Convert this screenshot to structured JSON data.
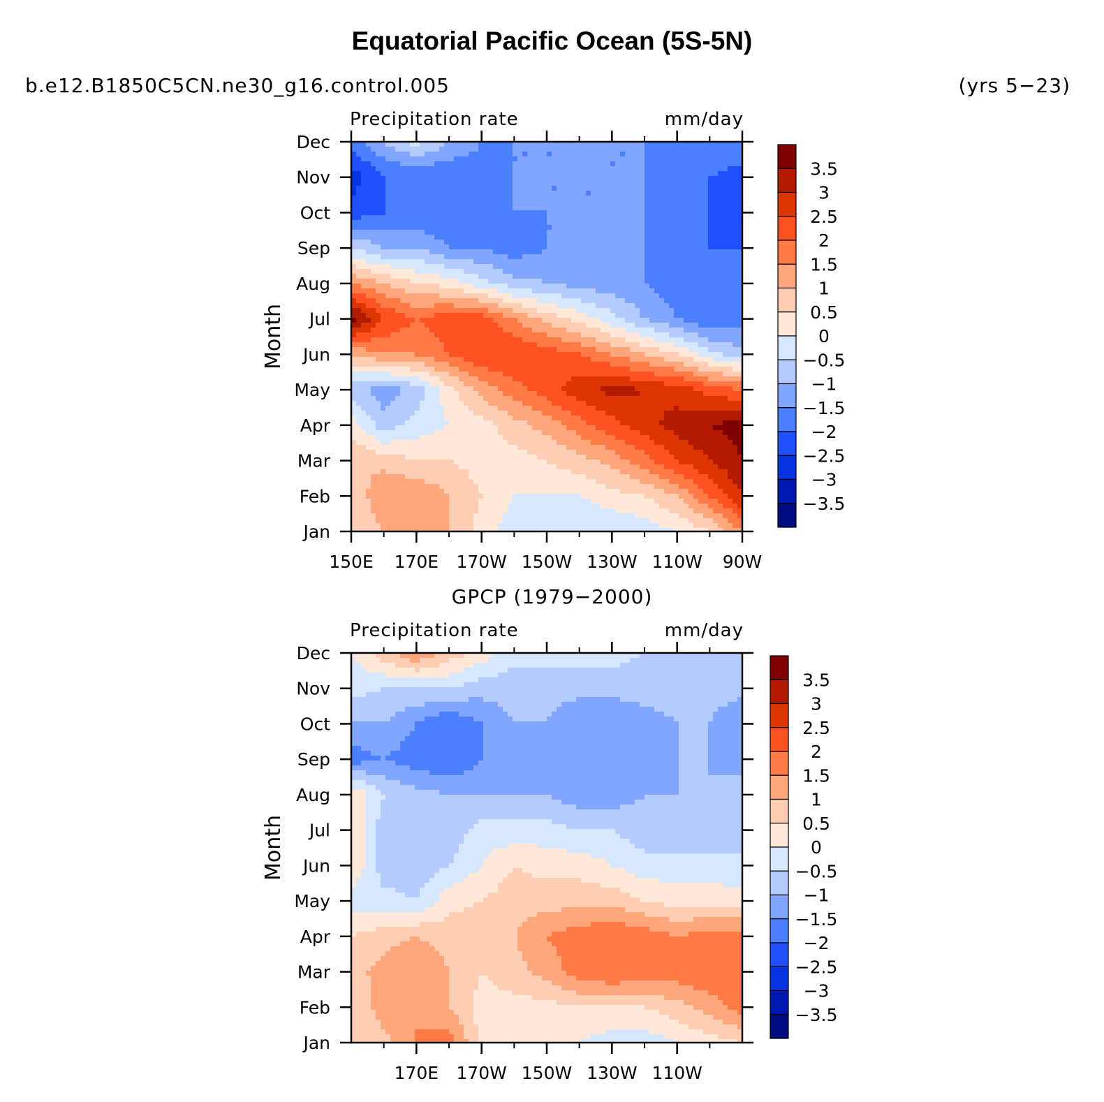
{
  "figure": {
    "title": "Equatorial Pacific Ocean (5S-5N)",
    "case_name": "b.e12.B1850C5CN.ne30_g16.control.005",
    "years": "(yrs 5−23)",
    "panel2_title": "GPCP (1979−2000)"
  },
  "colorbar": {
    "labels": [
      "3.5",
      "3",
      "2.5",
      "2",
      "1.5",
      "1",
      "0.5",
      "0",
      "−0.5",
      "−1",
      "−1.5",
      "−2",
      "−2.5",
      "−3",
      "−3.5"
    ],
    "colors": [
      "#7f0000",
      "#b31b00",
      "#dd3600",
      "#ff5222",
      "#ff7a45",
      "#ffa67a",
      "#ffcdb2",
      "#ffe8d8",
      "#d6e8ff",
      "#b3cbff",
      "#80a6ff",
      "#4a7fff",
      "#1f4fff",
      "#0634e0",
      "#0017b0",
      "#000c80"
    ]
  },
  "chart_data": [
    {
      "type": "heatmap",
      "subtitle_left": "Precipitation rate",
      "subtitle_right": "mm/day",
      "ylabel": "Month",
      "y_ticks": [
        "Jan",
        "Feb",
        "Mar",
        "Apr",
        "May",
        "Jun",
        "Jul",
        "Aug",
        "Sep",
        "Oct",
        "Nov",
        "Dec"
      ],
      "x_ticks": [
        "150E",
        "170E",
        "170W",
        "150W",
        "130W",
        "110W",
        "90W"
      ],
      "x_range": [
        150,
        270
      ],
      "legend_position": "right",
      "z_grid": [
        [
          0.5,
          1.0,
          1.5,
          1.0,
          0.3,
          -0.3,
          -0.5,
          -0.5,
          -0.5,
          -0.3,
          0.0,
          0.5,
          1.5
        ],
        [
          0.5,
          1.5,
          1.5,
          1.0,
          0.5,
          0.0,
          0.0,
          0.0,
          0.3,
          0.5,
          1.0,
          2.0,
          3.0
        ],
        [
          1.0,
          0.8,
          0.5,
          0.5,
          0.3,
          0.3,
          0.5,
          0.8,
          1.2,
          1.8,
          2.5,
          3.0,
          3.5
        ],
        [
          0.3,
          -0.8,
          -0.3,
          0.0,
          0.3,
          0.8,
          1.2,
          1.8,
          2.3,
          2.8,
          3.2,
          3.5,
          3.7
        ],
        [
          -0.8,
          -1.3,
          -0.8,
          0.3,
          1.2,
          1.8,
          2.3,
          2.8,
          3.2,
          3.0,
          2.8,
          2.3,
          2.0
        ],
        [
          1.0,
          1.5,
          1.5,
          2.0,
          2.5,
          2.5,
          2.3,
          2.0,
          1.5,
          1.0,
          0.5,
          -0.3,
          -0.8
        ],
        [
          3.8,
          2.5,
          2.0,
          2.3,
          2.3,
          1.5,
          0.8,
          0.3,
          -0.3,
          -1.0,
          -1.5,
          -2.0,
          -1.8
        ],
        [
          1.5,
          1.0,
          0.5,
          0.3,
          -0.3,
          -0.8,
          -1.0,
          -1.2,
          -1.3,
          -1.5,
          -1.8,
          -2.0,
          -2.0
        ],
        [
          -0.5,
          -1.0,
          -1.0,
          -1.5,
          -1.5,
          -1.8,
          -1.5,
          -1.5,
          -1.5,
          -1.5,
          -1.8,
          -2.0,
          -2.0
        ],
        [
          -2.3,
          -2.0,
          -2.0,
          -2.0,
          -1.8,
          -1.5,
          -1.5,
          -1.5,
          -1.5,
          -1.5,
          -1.8,
          -2.0,
          -2.3
        ],
        [
          -2.8,
          -2.0,
          -2.0,
          -2.0,
          -1.8,
          -1.5,
          -1.5,
          -1.5,
          -1.5,
          -1.5,
          -1.8,
          -2.0,
          -2.3
        ],
        [
          -1.8,
          -1.0,
          -0.3,
          -1.0,
          -1.5,
          -1.5,
          -1.5,
          -1.5,
          -1.5,
          -1.5,
          -1.5,
          -1.5,
          -1.5
        ]
      ]
    },
    {
      "type": "heatmap",
      "subtitle_left": "Precipitation rate",
      "subtitle_right": "mm/day",
      "ylabel": "Month",
      "y_ticks": [
        "Jan",
        "Feb",
        "Mar",
        "Apr",
        "May",
        "Jun",
        "Jul",
        "Aug",
        "Sep",
        "Oct",
        "Nov",
        "Dec"
      ],
      "x_ticks": [
        "170E",
        "170W",
        "150W",
        "130W",
        "110W"
      ],
      "x_range": [
        150,
        270
      ],
      "legend_position": "right",
      "z_grid": [
        [
          0.5,
          0.8,
          1.5,
          1.8,
          0.3,
          0.3,
          0.3,
          0.0,
          -0.3,
          -0.3,
          0.0,
          0.3,
          0.5
        ],
        [
          0.5,
          1.3,
          1.5,
          1.0,
          0.3,
          0.3,
          0.3,
          0.5,
          0.5,
          0.5,
          0.8,
          1.2,
          1.8
        ],
        [
          0.8,
          1.2,
          1.5,
          1.0,
          0.5,
          0.8,
          1.2,
          1.8,
          2.0,
          1.8,
          1.8,
          2.0,
          1.8
        ],
        [
          0.5,
          0.8,
          1.0,
          0.8,
          0.8,
          1.0,
          1.5,
          1.8,
          2.0,
          1.8,
          1.5,
          1.8,
          1.8
        ],
        [
          -0.3,
          -0.3,
          -0.5,
          0.3,
          0.5,
          0.8,
          0.8,
          0.8,
          0.8,
          0.5,
          0.3,
          0.3,
          0.3
        ],
        [
          0.5,
          -0.8,
          -0.8,
          -0.5,
          0.0,
          0.5,
          0.3,
          0.3,
          0.0,
          -0.3,
          -0.3,
          -0.3,
          -0.5
        ],
        [
          0.5,
          -0.8,
          -0.8,
          -0.8,
          -0.3,
          -0.3,
          -0.3,
          -0.5,
          -0.5,
          -0.8,
          -0.8,
          -0.8,
          -0.5
        ],
        [
          0.5,
          -0.5,
          -0.8,
          -1.0,
          -1.0,
          -1.0,
          -1.0,
          -1.3,
          -1.3,
          -1.0,
          -1.0,
          -1.0,
          -0.8
        ],
        [
          -1.8,
          -1.5,
          -1.8,
          -2.0,
          -1.5,
          -1.3,
          -1.2,
          -1.5,
          -1.5,
          -1.2,
          -1.0,
          -1.0,
          -1.2
        ],
        [
          -1.0,
          -1.0,
          -1.5,
          -2.0,
          -1.5,
          -1.0,
          -1.0,
          -1.5,
          -1.5,
          -1.2,
          -1.0,
          -1.0,
          -1.5
        ],
        [
          -0.3,
          -0.5,
          -0.5,
          -0.5,
          -0.8,
          -0.8,
          -0.8,
          -0.8,
          -0.8,
          -0.8,
          -0.8,
          -0.8,
          -0.8
        ],
        [
          0.0,
          0.8,
          1.5,
          0.8,
          0.3,
          -0.3,
          -0.3,
          -0.3,
          -0.3,
          -0.5,
          -0.5,
          -0.8,
          -0.8
        ]
      ]
    }
  ]
}
